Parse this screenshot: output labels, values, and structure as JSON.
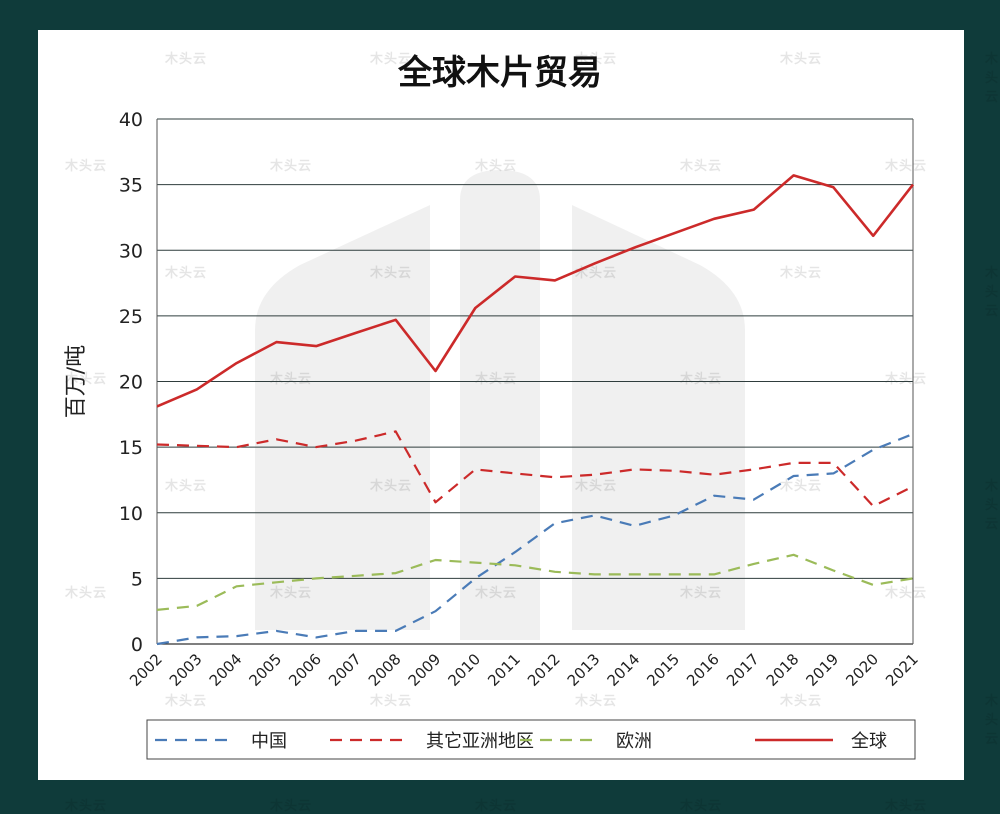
{
  "watermark_text": "木头云",
  "chart_data": {
    "type": "line",
    "title": "全球木片贸易",
    "xlabel": "",
    "ylabel": "百万/吨",
    "ylim": [
      0,
      40
    ],
    "yticks": [
      0,
      5,
      10,
      15,
      20,
      25,
      30,
      35,
      40
    ],
    "grid": true,
    "legend_position": "bottom",
    "x": [
      "2002",
      "2003",
      "2004",
      "2005",
      "2006",
      "2007",
      "2008",
      "2009",
      "2010",
      "2011",
      "2012",
      "2013",
      "2014",
      "2015",
      "2016",
      "2017",
      "2018",
      "2019",
      "2020",
      "2021"
    ],
    "series": [
      {
        "name": "中国",
        "color": "#4a7bb7",
        "style": "dashed",
        "values": [
          0.0,
          0.5,
          0.6,
          1.0,
          0.5,
          1.0,
          1.0,
          2.5,
          5.0,
          7.0,
          9.2,
          9.8,
          9.0,
          9.8,
          11.3,
          11.0,
          12.8,
          13.0,
          14.8,
          16.0
        ]
      },
      {
        "name": "其它亚洲地区",
        "color": "#cc2a2a",
        "style": "dashed",
        "values": [
          15.2,
          15.1,
          15.0,
          15.6,
          15.0,
          15.5,
          16.2,
          10.8,
          13.3,
          13.0,
          12.7,
          12.9,
          13.3,
          13.2,
          12.9,
          13.3,
          13.8,
          13.8,
          10.5,
          12.0
        ]
      },
      {
        "name": "欧洲",
        "color": "#9bbb59",
        "style": "dashed",
        "values": [
          2.6,
          2.9,
          4.4,
          4.7,
          5.0,
          5.2,
          5.4,
          6.4,
          6.2,
          6.0,
          5.5,
          5.3,
          5.3,
          5.3,
          5.3,
          6.1,
          6.8,
          5.6,
          4.5,
          5.0
        ]
      },
      {
        "name": "全球",
        "color": "#cc2a2a",
        "style": "solid",
        "values": [
          18.1,
          19.4,
          21.4,
          23.0,
          22.7,
          23.7,
          24.7,
          20.8,
          25.6,
          28.0,
          27.7,
          29.0,
          30.2,
          31.3,
          32.4,
          33.1,
          35.7,
          34.8,
          31.1,
          35.0
        ]
      }
    ]
  }
}
